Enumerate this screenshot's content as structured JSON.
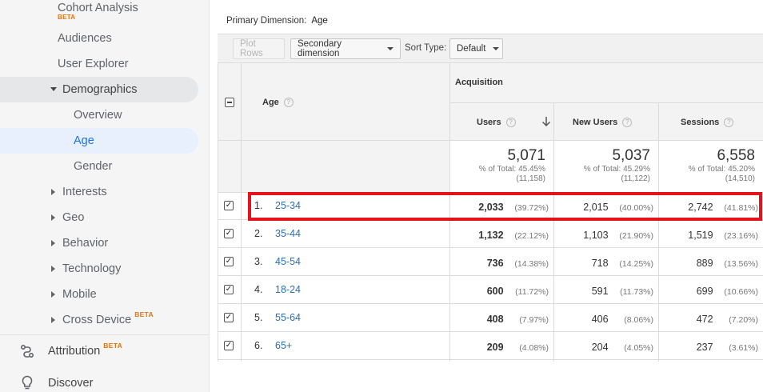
{
  "sidebar": {
    "cohort": {
      "label": "Cohort Analysis",
      "badge": "BETA"
    },
    "audiences": "Audiences",
    "user_explorer": "User Explorer",
    "demographics": "Demographics",
    "overview": "Overview",
    "age": "Age",
    "gender": "Gender",
    "interests": "Interests",
    "geo": "Geo",
    "behavior": "Behavior",
    "technology": "Technology",
    "mobile": "Mobile",
    "cross_device": {
      "label": "Cross Device",
      "badge": "BETA"
    },
    "attribution": {
      "label": "Attribution",
      "badge": "BETA",
      "icon": "attribution-icon"
    },
    "discover": {
      "label": "Discover",
      "icon": "lightbulb-icon"
    }
  },
  "primary_dimension": {
    "label": "Primary Dimension:",
    "value": "Age"
  },
  "toolbar": {
    "plot_rows": "Plot Rows",
    "secondary_dimension": "Secondary dimension",
    "sort_type_label": "Sort Type:",
    "sort_type_value": "Default"
  },
  "table": {
    "dimension_header": "Age",
    "group_header": "Acquisition",
    "columns": [
      "Users",
      "New Users",
      "Sessions"
    ],
    "sort_icon": "arrow-down-icon",
    "totals": [
      {
        "value": "5,071",
        "pct_label": "% of Total: 45.45%",
        "of_total": "(11,158)"
      },
      {
        "value": "5,037",
        "pct_label": "% of Total: 45.29%",
        "of_total": "(11,122)"
      },
      {
        "value": "6,558",
        "pct_label": "% of Total: 45.20%",
        "of_total": "(14,510)"
      }
    ],
    "rows": [
      {
        "index": "1.",
        "age": "25-34",
        "users": "2,033",
        "users_pct": "(39.72%)",
        "new_users": "2,015",
        "new_users_pct": "(40.00%)",
        "sessions": "2,742",
        "sessions_pct": "(41.81%)"
      },
      {
        "index": "2.",
        "age": "35-44",
        "users": "1,132",
        "users_pct": "(22.12%)",
        "new_users": "1,103",
        "new_users_pct": "(21.90%)",
        "sessions": "1,519",
        "sessions_pct": "(23.16%)"
      },
      {
        "index": "3.",
        "age": "45-54",
        "users": "736",
        "users_pct": "(14.38%)",
        "new_users": "718",
        "new_users_pct": "(14.25%)",
        "sessions": "889",
        "sessions_pct": "(13.56%)"
      },
      {
        "index": "4.",
        "age": "18-24",
        "users": "600",
        "users_pct": "(11.72%)",
        "new_users": "591",
        "new_users_pct": "(11.73%)",
        "sessions": "699",
        "sessions_pct": "(10.66%)"
      },
      {
        "index": "5.",
        "age": "55-64",
        "users": "408",
        "users_pct": "(7.97%)",
        "new_users": "406",
        "new_users_pct": "(8.06%)",
        "sessions": "472",
        "sessions_pct": "(7.20%)"
      },
      {
        "index": "6.",
        "age": "65+",
        "users": "209",
        "users_pct": "(4.08%)",
        "new_users": "204",
        "new_users_pct": "(4.05%)",
        "sessions": "237",
        "sessions_pct": "(3.61%)"
      }
    ]
  },
  "colors": {
    "highlight": "#e3141c",
    "link": "#2b6fb5",
    "active": "#1a73e8",
    "beta": "#e8710a"
  }
}
